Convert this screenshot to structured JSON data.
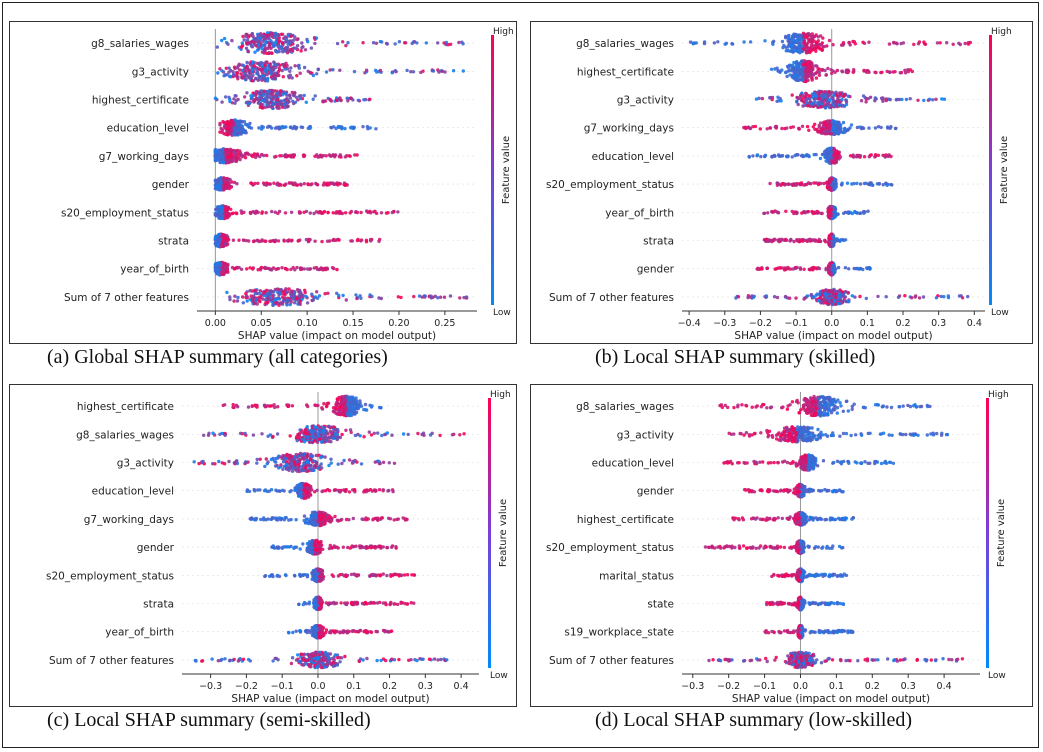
{
  "colors": {
    "high": "#ff0052",
    "low": "#008bfb",
    "axis": "#333333",
    "zero_line": "#999999"
  },
  "chart_data": [
    {
      "type": "beeswarm",
      "caption": "(a) Global SHAP summary (all categories)",
      "xlabel": "SHAP value (impact on model output)",
      "colorbar": {
        "label": "Feature value",
        "high": "High",
        "low": "Low"
      },
      "xlim": [
        -0.02,
        0.285
      ],
      "xticks": [
        0.0,
        0.05,
        0.1,
        0.15,
        0.2,
        0.25
      ],
      "xtick_labels": [
        "0.00",
        "0.05",
        "0.10",
        "0.15",
        "0.20",
        "0.25"
      ],
      "features": [
        {
          "name": "g8_salaries_wages",
          "min": 0.0,
          "max": 0.27,
          "peak": 0.06,
          "width": 0.05,
          "height": 0.75,
          "lowside": "center"
        },
        {
          "name": "g3_activity",
          "min": 0.0,
          "max": 0.275,
          "peak": 0.05,
          "width": 0.05,
          "height": 0.7,
          "lowside": "center"
        },
        {
          "name": "highest_certificate",
          "min": 0.0,
          "max": 0.18,
          "peak": 0.06,
          "width": 0.04,
          "height": 0.65,
          "lowside": "center"
        },
        {
          "name": "education_level",
          "min": 0.005,
          "max": 0.175,
          "peak": 0.02,
          "width": 0.02,
          "height": 0.55,
          "lowside": "right"
        },
        {
          "name": "g7_working_days",
          "min": 0.0,
          "max": 0.155,
          "peak": 0.01,
          "width": 0.025,
          "height": 0.5,
          "lowside": "left"
        },
        {
          "name": "gender",
          "min": 0.0,
          "max": 0.145,
          "peak": 0.008,
          "width": 0.012,
          "height": 0.45,
          "lowside": "left"
        },
        {
          "name": "s20_employment_status",
          "min": 0.0,
          "max": 0.2,
          "peak": 0.008,
          "width": 0.012,
          "height": 0.45,
          "lowside": "left"
        },
        {
          "name": "strata",
          "min": 0.0,
          "max": 0.18,
          "peak": 0.006,
          "width": 0.01,
          "height": 0.45,
          "lowside": "left"
        },
        {
          "name": "year_of_birth",
          "min": 0.0,
          "max": 0.135,
          "peak": 0.006,
          "width": 0.01,
          "height": 0.45,
          "lowside": "left"
        },
        {
          "name": "Sum of 7 other features",
          "min": 0.01,
          "max": 0.275,
          "peak": 0.07,
          "width": 0.06,
          "height": 0.6,
          "lowside": "center"
        }
      ]
    },
    {
      "type": "beeswarm",
      "caption": "(b) Local SHAP summary (skilled)",
      "xlabel": "SHAP value (impact on model output)",
      "colorbar": {
        "label": "Feature value",
        "high": "High",
        "low": "Low"
      },
      "xlim": [
        -0.42,
        0.43
      ],
      "xticks": [
        -0.4,
        -0.3,
        -0.2,
        -0.1,
        0.0,
        0.1,
        0.2,
        0.3,
        0.4
      ],
      "xtick_labels": [
        "−0.4",
        "−0.3",
        "−0.2",
        "−0.1",
        "0.0",
        "0.1",
        "0.2",
        "0.3",
        "0.4"
      ],
      "features": [
        {
          "name": "g8_salaries_wages",
          "min": -0.4,
          "max": 0.4,
          "peak": -0.08,
          "width": 0.08,
          "height": 0.7,
          "lowside": "left"
        },
        {
          "name": "highest_certificate",
          "min": -0.17,
          "max": 0.25,
          "peak": -0.08,
          "width": 0.05,
          "height": 0.75,
          "lowside": "left"
        },
        {
          "name": "g3_activity",
          "min": -0.22,
          "max": 0.34,
          "peak": -0.02,
          "width": 0.1,
          "height": 0.6,
          "lowside": "center"
        },
        {
          "name": "g7_working_days",
          "min": -0.25,
          "max": 0.19,
          "peak": 0.0,
          "width": 0.05,
          "height": 0.5,
          "lowside": "right"
        },
        {
          "name": "education_level",
          "min": -0.24,
          "max": 0.17,
          "peak": 0.0,
          "width": 0.025,
          "height": 0.55,
          "lowside": "left"
        },
        {
          "name": "s20_employment_status",
          "min": -0.18,
          "max": 0.18,
          "peak": 0.0,
          "width": 0.015,
          "height": 0.45,
          "lowside": "right"
        },
        {
          "name": "year_of_birth",
          "min": -0.2,
          "max": 0.11,
          "peak": 0.0,
          "width": 0.015,
          "height": 0.45,
          "lowside": "right"
        },
        {
          "name": "strata",
          "min": -0.19,
          "max": 0.04,
          "peak": 0.0,
          "width": 0.01,
          "height": 0.45,
          "lowside": "right"
        },
        {
          "name": "gender",
          "min": -0.21,
          "max": 0.11,
          "peak": 0.0,
          "width": 0.01,
          "height": 0.45,
          "lowside": "right"
        },
        {
          "name": "Sum of 7 other features",
          "min": -0.29,
          "max": 0.39,
          "peak": 0.0,
          "width": 0.06,
          "height": 0.55,
          "lowside": "center"
        }
      ]
    },
    {
      "type": "beeswarm",
      "caption": "(c) Local SHAP summary (semi-skilled)",
      "xlabel": "SHAP value (impact on model output)",
      "colorbar": {
        "label": "Feature value",
        "high": "High",
        "low": "Low"
      },
      "xlim": [
        -0.38,
        0.45
      ],
      "xticks": [
        -0.3,
        -0.2,
        -0.1,
        0.0,
        0.1,
        0.2,
        0.3,
        0.4
      ],
      "xtick_labels": [
        "−0.3",
        "−0.2",
        "−0.1",
        "0.0",
        "0.1",
        "0.2",
        "0.3",
        "0.4"
      ],
      "features": [
        {
          "name": "highest_certificate",
          "min": -0.27,
          "max": 0.18,
          "peak": 0.08,
          "width": 0.05,
          "height": 0.7,
          "lowside": "right"
        },
        {
          "name": "g8_salaries_wages",
          "min": -0.33,
          "max": 0.41,
          "peak": 0.0,
          "width": 0.1,
          "height": 0.6,
          "lowside": "center"
        },
        {
          "name": "g3_activity",
          "min": -0.35,
          "max": 0.24,
          "peak": -0.05,
          "width": 0.09,
          "height": 0.65,
          "lowside": "center"
        },
        {
          "name": "education_level",
          "min": -0.2,
          "max": 0.22,
          "peak": -0.04,
          "width": 0.025,
          "height": 0.55,
          "lowside": "left"
        },
        {
          "name": "g7_working_days",
          "min": -0.19,
          "max": 0.25,
          "peak": 0.0,
          "width": 0.04,
          "height": 0.5,
          "lowside": "left"
        },
        {
          "name": "gender",
          "min": -0.13,
          "max": 0.22,
          "peak": -0.01,
          "width": 0.03,
          "height": 0.5,
          "lowside": "left"
        },
        {
          "name": "s20_employment_status",
          "min": -0.15,
          "max": 0.3,
          "peak": 0.0,
          "width": 0.02,
          "height": 0.45,
          "lowside": "left"
        },
        {
          "name": "strata",
          "min": -0.06,
          "max": 0.27,
          "peak": 0.0,
          "width": 0.015,
          "height": 0.45,
          "lowside": "left"
        },
        {
          "name": "year_of_birth",
          "min": -0.1,
          "max": 0.21,
          "peak": 0.0,
          "width": 0.02,
          "height": 0.45,
          "lowside": "left"
        },
        {
          "name": "Sum of 7 other features",
          "min": -0.35,
          "max": 0.38,
          "peak": 0.0,
          "width": 0.08,
          "height": 0.55,
          "lowside": "center"
        }
      ]
    },
    {
      "type": "beeswarm",
      "caption": "(d) Local SHAP summary (low-skilled)",
      "xlabel": "SHAP value (impact on model output)",
      "colorbar": {
        "label": "Feature value",
        "high": "High",
        "low": "Low"
      },
      "xlim": [
        -0.33,
        0.5
      ],
      "xticks": [
        -0.3,
        -0.2,
        -0.1,
        0.0,
        0.1,
        0.2,
        0.3,
        0.4
      ],
      "xtick_labels": [
        "−0.3",
        "−0.2",
        "−0.1",
        "0.0",
        "0.1",
        "0.2",
        "0.3",
        "0.4"
      ],
      "features": [
        {
          "name": "g8_salaries_wages",
          "min": -0.24,
          "max": 0.38,
          "peak": 0.05,
          "width": 0.08,
          "height": 0.7,
          "lowside": "right"
        },
        {
          "name": "g3_activity",
          "min": -0.2,
          "max": 0.42,
          "peak": -0.01,
          "width": 0.08,
          "height": 0.55,
          "lowside": "right"
        },
        {
          "name": "education_level",
          "min": -0.22,
          "max": 0.26,
          "peak": 0.02,
          "width": 0.03,
          "height": 0.55,
          "lowside": "right"
        },
        {
          "name": "gender",
          "min": -0.16,
          "max": 0.12,
          "peak": 0.0,
          "width": 0.015,
          "height": 0.45,
          "lowside": "right"
        },
        {
          "name": "highest_certificate",
          "min": -0.19,
          "max": 0.15,
          "peak": 0.0,
          "width": 0.02,
          "height": 0.45,
          "lowside": "right"
        },
        {
          "name": "s20_employment_status",
          "min": -0.27,
          "max": 0.12,
          "peak": 0.0,
          "width": 0.015,
          "height": 0.45,
          "lowside": "right"
        },
        {
          "name": "marital_status",
          "min": -0.08,
          "max": 0.13,
          "peak": 0.0,
          "width": 0.012,
          "height": 0.45,
          "lowside": "right"
        },
        {
          "name": "state",
          "min": -0.1,
          "max": 0.12,
          "peak": 0.0,
          "width": 0.01,
          "height": 0.45,
          "lowside": "right"
        },
        {
          "name": "s19_workplace_state",
          "min": -0.1,
          "max": 0.15,
          "peak": 0.0,
          "width": 0.01,
          "height": 0.45,
          "lowside": "right"
        },
        {
          "name": "Sum of 7 other features",
          "min": -0.3,
          "max": 0.46,
          "peak": 0.0,
          "width": 0.06,
          "height": 0.55,
          "lowside": "center"
        }
      ]
    }
  ]
}
